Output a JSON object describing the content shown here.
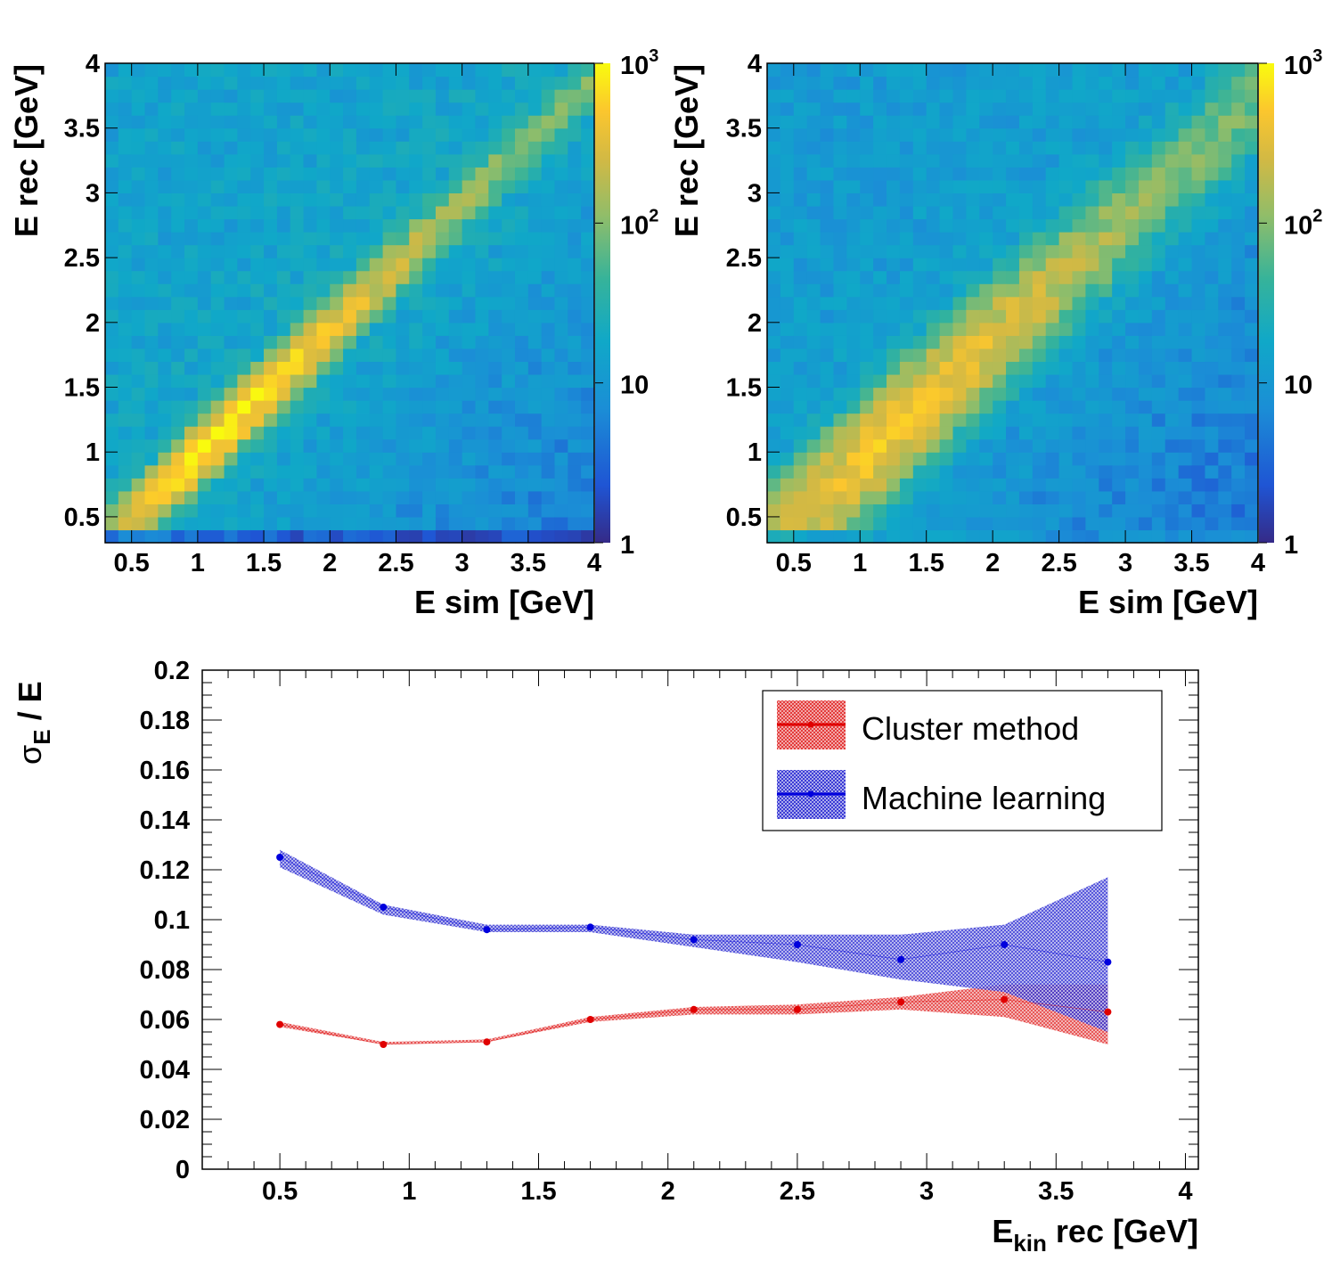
{
  "chart_data": [
    {
      "type": "heatmap",
      "id": "top-left",
      "xlabel": "E sim [GeV]",
      "ylabel": "E rec [GeV]",
      "xlim": [
        0.3,
        4.0
      ],
      "ylim": [
        0.3,
        4.0
      ],
      "xticks": [
        "0.5",
        "1",
        "1.5",
        "2",
        "2.5",
        "3",
        "3.5",
        "4"
      ],
      "yticks": [
        "0.5",
        "1",
        "1.5",
        "2",
        "2.5",
        "3",
        "3.5",
        "4"
      ],
      "colorbar": {
        "scale": "log",
        "range": [
          1,
          1000
        ],
        "labels": [
          "1",
          "10",
          "10",
          "10"
        ],
        "exponents": [
          "",
          "",
          "2",
          "3"
        ]
      },
      "diagonal_peak_counts": {
        "at_0.5": 300,
        "at_1.0": 800,
        "at_1.5": 700,
        "at_2.0": 400,
        "at_2.5": 200,
        "at_3.0": 120,
        "at_3.5": 60
      },
      "diagonal_width_gev": 0.12,
      "background_counts": 15,
      "lowest_row_counts": 2
    },
    {
      "type": "heatmap",
      "id": "top-right",
      "xlabel": "E sim [GeV]",
      "ylabel": "E rec [GeV]",
      "xlim": [
        0.3,
        4.0
      ],
      "ylim": [
        0.3,
        4.0
      ],
      "xticks": [
        "0.5",
        "1",
        "1.5",
        "2",
        "2.5",
        "3",
        "3.5",
        "4"
      ],
      "yticks": [
        "0.5",
        "1",
        "1.5",
        "2",
        "2.5",
        "3",
        "3.5",
        "4"
      ],
      "colorbar": {
        "scale": "log",
        "range": [
          1,
          1000
        ],
        "labels": [
          "1",
          "10",
          "10",
          "10"
        ],
        "exponents": [
          "",
          "",
          "2",
          "3"
        ]
      },
      "diagonal_peak_counts": {
        "at_0.5": 250,
        "at_1.0": 450,
        "at_1.5": 400,
        "at_2.0": 300,
        "at_2.5": 180,
        "at_3.0": 110,
        "at_3.5": 70
      },
      "diagonal_width_gev": 0.22,
      "background_counts": 12,
      "lowest_row_counts": 8
    },
    {
      "type": "line",
      "id": "bottom",
      "xlabel": "E",
      "xlabel_sub": "kin",
      "xlabel_rest": " rec [GeV]",
      "ylabel_main": "σ",
      "ylabel_sub": "E",
      "ylabel_rest": " / E",
      "xlim": [
        0.2,
        4.05
      ],
      "ylim": [
        0,
        0.2
      ],
      "xticks": [
        "0.5",
        "1",
        "1.5",
        "2",
        "2.5",
        "3",
        "3.5",
        "4"
      ],
      "yticks": [
        "0",
        "0.02",
        "0.04",
        "0.06",
        "0.08",
        "0.1",
        "0.12",
        "0.14",
        "0.16",
        "0.18",
        "0.2"
      ],
      "series": [
        {
          "name": "Cluster method",
          "color": "#e00000",
          "x": [
            0.5,
            0.9,
            1.3,
            1.7,
            2.1,
            2.5,
            2.9,
            3.3,
            3.7
          ],
          "y": [
            0.058,
            0.05,
            0.051,
            0.06,
            0.064,
            0.064,
            0.067,
            0.068,
            0.063
          ],
          "band_low": [
            0.057,
            0.05,
            0.051,
            0.059,
            0.062,
            0.062,
            0.064,
            0.061,
            0.05
          ],
          "band_high": [
            0.059,
            0.051,
            0.052,
            0.061,
            0.065,
            0.066,
            0.069,
            0.074,
            0.074
          ]
        },
        {
          "name": "Machine learning",
          "color": "#0000dd",
          "x": [
            0.5,
            0.9,
            1.3,
            1.7,
            2.1,
            2.5,
            2.9,
            3.3,
            3.7
          ],
          "y": [
            0.125,
            0.105,
            0.096,
            0.097,
            0.092,
            0.09,
            0.084,
            0.09,
            0.083
          ],
          "band_low": [
            0.121,
            0.102,
            0.095,
            0.095,
            0.089,
            0.083,
            0.076,
            0.071,
            0.055
          ],
          "band_high": [
            0.128,
            0.106,
            0.098,
            0.098,
            0.094,
            0.094,
            0.094,
            0.098,
            0.117
          ]
        }
      ],
      "legend": {
        "position": "top-right",
        "entries": [
          "Cluster method",
          "Machine learning"
        ]
      }
    }
  ]
}
